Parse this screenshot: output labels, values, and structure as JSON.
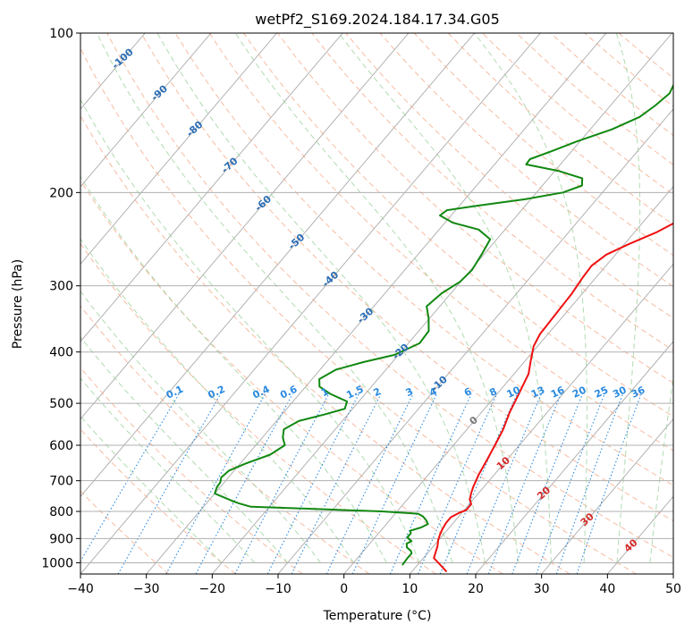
{
  "chart_data": {
    "type": "skew-t",
    "title": "wetPf2_S169.2024.184.17.34.G05",
    "xlabel": "Temperature (°C)",
    "ylabel": "Pressure (hPa)",
    "xlim": [
      -40,
      50
    ],
    "ylim": [
      1050,
      100
    ],
    "y_scale": "log",
    "grid": true,
    "x_ticks": [
      -40,
      -30,
      -20,
      -10,
      0,
      10,
      20,
      30,
      40,
      50
    ],
    "y_ticks": [
      100,
      200,
      300,
      400,
      500,
      600,
      700,
      800,
      900,
      1000
    ],
    "colors": {
      "temperature": "#ee1111",
      "dewpoint": "#118811",
      "isotherm": "#aaaaaa",
      "dry_adiabat": "#f4a582",
      "moist_adiabat": "#9ed29e",
      "mixing_ratio": "#2a8ae0",
      "dry_adiabat_label": "#2a6db5",
      "moist_adiabat_label": "#d42a2a",
      "zero_label": "#777777"
    },
    "series": [
      {
        "role": "temperature",
        "points": [
          [
            15.3,
            1040
          ],
          [
            13.5,
            1010
          ],
          [
            11.6,
            980
          ],
          [
            11.2,
            960
          ],
          [
            10.6,
            930
          ],
          [
            9.9,
            905
          ],
          [
            9.4,
            880
          ],
          [
            9.1,
            860
          ],
          [
            8.9,
            840
          ],
          [
            8.9,
            820
          ],
          [
            9.6,
            805
          ],
          [
            10.3,
            795
          ],
          [
            10.3,
            775
          ],
          [
            9.5,
            760
          ],
          [
            8.9,
            740
          ],
          [
            8.4,
            720
          ],
          [
            7.6,
            680
          ],
          [
            7.0,
            640
          ],
          [
            6.3,
            600
          ],
          [
            5.5,
            560
          ],
          [
            4.3,
            520
          ],
          [
            3.3,
            480
          ],
          [
            2.2,
            440
          ],
          [
            0.8,
            415
          ],
          [
            -0.6,
            390
          ],
          [
            -1.2,
            370
          ],
          [
            -1.4,
            340
          ],
          [
            -1.6,
            310
          ],
          [
            -2.0,
            290
          ],
          [
            -2.2,
            275
          ],
          [
            -1.4,
            262
          ],
          [
            0.7,
            250
          ],
          [
            3.3,
            238
          ],
          [
            5.2,
            226
          ],
          [
            6.3,
            216
          ],
          [
            6.9,
            204
          ],
          [
            7.6,
            194
          ],
          [
            8.9,
            186
          ],
          [
            10.3,
            176
          ],
          [
            11.6,
            164
          ],
          [
            12.9,
            152
          ],
          [
            14.3,
            140
          ],
          [
            15.3,
            132
          ],
          [
            16.9,
            124
          ],
          [
            19.3,
            118
          ],
          [
            21.8,
            112
          ],
          [
            23.4,
            106
          ],
          [
            24.3,
            100
          ]
        ]
      },
      {
        "role": "dewpoint",
        "points": [
          [
            7.7,
            1010
          ],
          [
            7.6,
            980
          ],
          [
            7.6,
            960
          ],
          [
            7.2,
            950
          ],
          [
            6.1,
            935
          ],
          [
            5.6,
            920
          ],
          [
            6.0,
            910
          ],
          [
            5.2,
            900
          ],
          [
            4.9,
            895
          ],
          [
            4.9,
            880
          ],
          [
            4.5,
            870
          ],
          [
            5.7,
            858
          ],
          [
            6.3,
            845
          ],
          [
            5.6,
            832
          ],
          [
            4.6,
            818
          ],
          [
            3.5,
            808
          ],
          [
            -2.3,
            800
          ],
          [
            -12.3,
            792
          ],
          [
            -22.8,
            784
          ],
          [
            -25.1,
            772
          ],
          [
            -26.4,
            764
          ],
          [
            -28.5,
            750
          ],
          [
            -30.0,
            740
          ],
          [
            -30.5,
            720
          ],
          [
            -30.6,
            705
          ],
          [
            -31.1,
            690
          ],
          [
            -30.8,
            670
          ],
          [
            -29.2,
            650
          ],
          [
            -26.6,
            625
          ],
          [
            -25.6,
            600
          ],
          [
            -26.9,
            580
          ],
          [
            -27.8,
            560
          ],
          [
            -26.6,
            540
          ],
          [
            -23.6,
            525
          ],
          [
            -21.2,
            512
          ],
          [
            -21.8,
            496
          ],
          [
            -25.3,
            480
          ],
          [
            -27.9,
            465
          ],
          [
            -28.9,
            450
          ],
          [
            -27.6,
            432
          ],
          [
            -24.4,
            418
          ],
          [
            -20.6,
            405
          ],
          [
            -18.3,
            385
          ],
          [
            -18.5,
            365
          ],
          [
            -20.2,
            345
          ],
          [
            -22.0,
            328
          ],
          [
            -21.4,
            310
          ],
          [
            -20.1,
            295
          ],
          [
            -19.8,
            280
          ],
          [
            -20.4,
            260
          ],
          [
            -21.0,
            245
          ],
          [
            -24.0,
            235
          ],
          [
            -28.8,
            228
          ],
          [
            -31.7,
            221
          ],
          [
            -31.3,
            216
          ],
          [
            -27.4,
            212
          ],
          [
            -20.9,
            206
          ],
          [
            -16.0,
            200
          ],
          [
            -14.0,
            194
          ],
          [
            -14.9,
            188
          ],
          [
            -19.5,
            182
          ],
          [
            -25.2,
            177
          ],
          [
            -25.3,
            173
          ],
          [
            -23.0,
            167
          ],
          [
            -20.4,
            160
          ],
          [
            -16.7,
            152
          ],
          [
            -14.1,
            144
          ],
          [
            -13.2,
            137
          ],
          [
            -12.6,
            130
          ],
          [
            -13.2,
            124
          ],
          [
            -14.9,
            117
          ],
          [
            -15.4,
            110
          ],
          [
            -13.3,
            103
          ],
          [
            -11.6,
            100
          ]
        ]
      }
    ],
    "dry_adiabat_labels": [
      -100,
      -90,
      -80,
      -70,
      -60,
      -50,
      -40,
      -30,
      -20,
      -10,
      0,
      10,
      20,
      30,
      40
    ],
    "mixing_ratio_labels": [
      "0.1",
      "0.2",
      "0.4",
      "0.6",
      "1",
      "1.5",
      "2",
      "3",
      "4",
      "6",
      "8",
      "10",
      "13",
      "16",
      "20",
      "25",
      "30",
      "36"
    ],
    "mixing_ratio_values": [
      0.1,
      0.2,
      0.4,
      0.6,
      1,
      1.5,
      2,
      3,
      4,
      6,
      8,
      10,
      13,
      16,
      20,
      25,
      30,
      36
    ]
  }
}
